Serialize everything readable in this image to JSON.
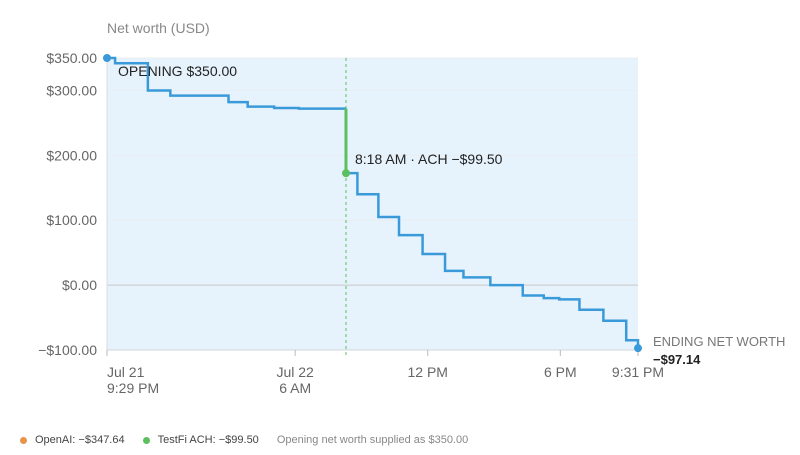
{
  "chart_data": {
    "type": "line",
    "step": true,
    "ylabel": "Net worth (USD)",
    "ylim": [
      -100,
      350
    ],
    "y_ticks": [
      {
        "value": 350,
        "label": "$350.00"
      },
      {
        "value": 300,
        "label": "$300.00"
      },
      {
        "value": 200,
        "label": "$200.00"
      },
      {
        "value": 100,
        "label": "$100.00"
      },
      {
        "value": 0,
        "label": "$0.00"
      },
      {
        "value": -100,
        "label": "−$100.00"
      }
    ],
    "x_range": [
      "Jul 21 9:29 PM",
      "Jul 22 9:31 PM"
    ],
    "x_ticks": [
      {
        "time": "Jul 21 9:29 PM",
        "line1": "Jul 21",
        "line2": "9:29 PM"
      },
      {
        "time": "Jul 22 6 AM",
        "line1": "Jul 22",
        "line2": "6 AM"
      },
      {
        "time": "Jul 22 12 PM",
        "line1": "12 PM",
        "line2": ""
      },
      {
        "time": "Jul 22 6 PM",
        "line1": "6 PM",
        "line2": ""
      },
      {
        "time": "Jul 22 9:31 PM",
        "line1": "9:31 PM",
        "line2": ""
      }
    ],
    "grid": true,
    "colors": {
      "line": "#3a9ad9",
      "fill": "#e6f3fc",
      "event": "#5cbf60",
      "openai": "#e8934a",
      "zero": "#cccccc"
    },
    "series": [
      {
        "name": "Net worth",
        "points": [
          {
            "x": "Jul 21 9:29 PM",
            "y": 350
          },
          {
            "x": "Jul 21 9:51 PM",
            "y": 342
          },
          {
            "x": "Jul 21 11:20 PM",
            "y": 300
          },
          {
            "x": "Jul 22 12:21 AM",
            "y": 292
          },
          {
            "x": "Jul 22 2:59 AM",
            "y": 282
          },
          {
            "x": "Jul 22 3:51 AM",
            "y": 275
          },
          {
            "x": "Jul 22 5:03 AM",
            "y": 273
          },
          {
            "x": "Jul 22 6:10 AM",
            "y": 272
          },
          {
            "x": "Jul 22 8:18 AM",
            "y": 172.5
          },
          {
            "x": "Jul 22 8:49 AM",
            "y": 140
          },
          {
            "x": "Jul 22 9:46 AM",
            "y": 105
          },
          {
            "x": "Jul 22 10:42 AM",
            "y": 77
          },
          {
            "x": "Jul 22 11:46 AM",
            "y": 48
          },
          {
            "x": "Jul 22 12:47 PM",
            "y": 22
          },
          {
            "x": "Jul 22 1:37 PM",
            "y": 12
          },
          {
            "x": "Jul 22 2:50 PM",
            "y": 0
          },
          {
            "x": "Jul 22 4:18 PM",
            "y": -16
          },
          {
            "x": "Jul 22 5:15 PM",
            "y": -20
          },
          {
            "x": "Jul 22 5:57 PM",
            "y": -22
          },
          {
            "x": "Jul 22 6:52 PM",
            "y": -38
          },
          {
            "x": "Jul 22 7:57 PM",
            "y": -55
          },
          {
            "x": "Jul 22 8:59 PM",
            "y": -85
          },
          {
            "x": "Jul 22 9:31 PM",
            "y": -97.14
          }
        ]
      }
    ],
    "annotations": {
      "opening": {
        "x": "Jul 21 9:29 PM",
        "y": 350,
        "label": "OPENING $350.00"
      },
      "event": {
        "x": "Jul 22 8:18 AM",
        "from": 272,
        "to": 172.5,
        "label": "8:18 AM · ACH −$99.50"
      },
      "ending": {
        "x": "Jul 22 9:31 PM",
        "y": -97.14,
        "line1": "ENDING NET WORTH",
        "line2": "−$97.14"
      }
    }
  },
  "legend": {
    "items": [
      {
        "label": "OpenAI: −$347.64",
        "color": "#e8934a"
      },
      {
        "label": "TestFi ACH: −$99.50",
        "color": "#5cbf60"
      }
    ],
    "note": "Opening net worth supplied as $350.00"
  }
}
